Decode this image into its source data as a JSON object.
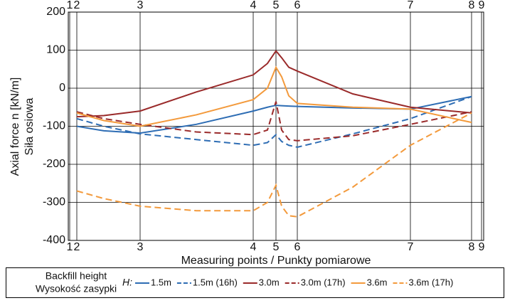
{
  "chart_data": {
    "type": "line",
    "y_label": "Axial force n [kN/m]",
    "y_label_2": "Siła osiowa",
    "x_label": "Measuring points / Punkty pomiarowe",
    "legend_title": [
      "Backfill height",
      "Wysokość zasypki"
    ],
    "legend_symbol": "H:",
    "x": [
      1.2,
      5,
      10.1,
      18,
      26,
      28,
      29.2,
      30,
      31,
      32.2,
      40,
      48.1,
      56.7
    ],
    "xlim": [
      0,
      58.4
    ],
    "xticks": [
      {
        "value": 0.2,
        "label": "1"
      },
      {
        "value": 1.2,
        "label": "2"
      },
      {
        "value": 10.1,
        "label": "3"
      },
      {
        "value": 26,
        "label": "4"
      },
      {
        "value": 29.2,
        "label": "5"
      },
      {
        "value": 32.2,
        "label": "6"
      },
      {
        "value": 48.1,
        "label": "7"
      },
      {
        "value": 56.7,
        "label": "8"
      },
      {
        "value": 58.1,
        "label": "9"
      }
    ],
    "ylim": [
      -400,
      200
    ],
    "yticks": [
      -400,
      -300,
      -200,
      -100,
      0,
      100,
      200
    ],
    "grid": true,
    "series": [
      {
        "name": "1.5m",
        "color": "#2e6db4",
        "dashed": false,
        "values": [
          -100,
          -112,
          -118,
          -95,
          -60,
          -50,
          -45,
          -46,
          -47,
          -48,
          -52,
          -55,
          -22
        ]
      },
      {
        "name": "1.5m (16h)",
        "color": "#2e6db4",
        "dashed": true,
        "values": [
          -80,
          -100,
          -120,
          -135,
          -150,
          -143,
          -122,
          -140,
          -150,
          -155,
          -120,
          -80,
          -22
        ]
      },
      {
        "name": "3.0m",
        "color": "#9a2a2a",
        "dashed": false,
        "values": [
          -75,
          -72,
          -60,
          -10,
          35,
          65,
          98,
          80,
          55,
          45,
          -15,
          -50,
          -65
        ]
      },
      {
        "name": "3.0m (17h)",
        "color": "#9a2a2a",
        "dashed": true,
        "values": [
          -62,
          -80,
          -95,
          -115,
          -122,
          -110,
          -35,
          -110,
          -135,
          -138,
          -125,
          -95,
          -62
        ]
      },
      {
        "name": "3.6m",
        "color": "#f39a3c",
        "dashed": false,
        "values": [
          -65,
          -85,
          -100,
          -70,
          -30,
          0,
          55,
          30,
          -20,
          -40,
          -50,
          -55,
          -90
        ]
      },
      {
        "name": "3.6m (17h)",
        "color": "#f39a3c",
        "dashed": true,
        "values": [
          -270,
          -290,
          -310,
          -322,
          -322,
          -300,
          -255,
          -310,
          -335,
          -338,
          -260,
          -150,
          -65
        ]
      }
    ]
  }
}
